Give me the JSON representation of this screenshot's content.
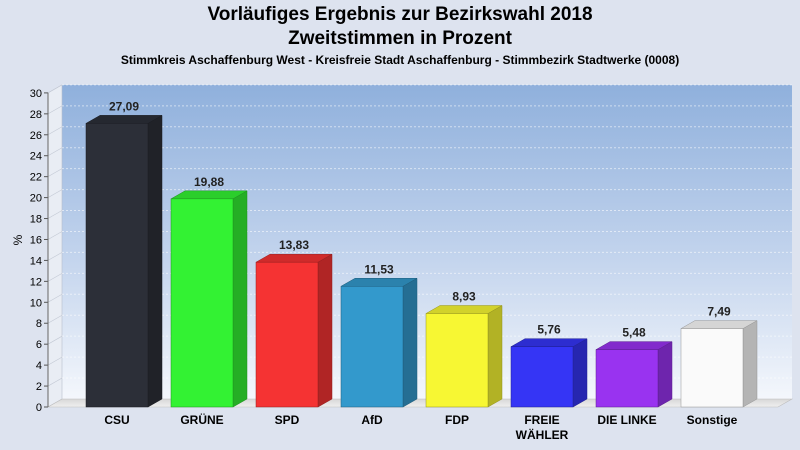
{
  "title": "Vorläufiges Ergebnis zur Bezirkswahl 2018",
  "subtitle": "Zweitstimmen in Prozent",
  "caption": "Stimmkreis Aschaffenburg West - Kreisfreie Stadt Aschaffenburg - Stimmbezirk Stadtwerke (0008)",
  "chart_data": {
    "type": "bar",
    "title": "Vorläufiges Ergebnis zur Bezirkswahl 2018",
    "subtitle": "Zweitstimmen in Prozent",
    "ylabel": "%",
    "ylim": [
      0,
      30
    ],
    "yticks": [
      "0",
      "2",
      "4",
      "6",
      "8",
      "10",
      "12",
      "14",
      "16",
      "18",
      "20",
      "22",
      "24",
      "26",
      "28",
      "30"
    ],
    "grid": true,
    "categories": [
      "CSU",
      "GRÜNE",
      "SPD",
      "AfD",
      "FDP",
      "FREIE WÄHLER",
      "DIE LINKE",
      "Sonstige"
    ],
    "category_lines": [
      [
        "CSU"
      ],
      [
        "GRÜNE"
      ],
      [
        "SPD"
      ],
      [
        "AfD"
      ],
      [
        "FDP"
      ],
      [
        "FREIE",
        "WÄHLER"
      ],
      [
        "DIE LINKE"
      ],
      [
        "Sonstige"
      ]
    ],
    "values": [
      27.09,
      19.88,
      13.83,
      11.53,
      8.93,
      5.76,
      5.48,
      7.49
    ],
    "value_labels": [
      "27,09",
      "19,88",
      "13,83",
      "11,53",
      "8,93",
      "5,76",
      "5,48",
      "7,49"
    ],
    "colors": [
      "#2c2f38",
      "#33f233",
      "#f53333",
      "#3399cc",
      "#f7f733",
      "#3535f5",
      "#9933f0",
      "#fafafa"
    ]
  }
}
